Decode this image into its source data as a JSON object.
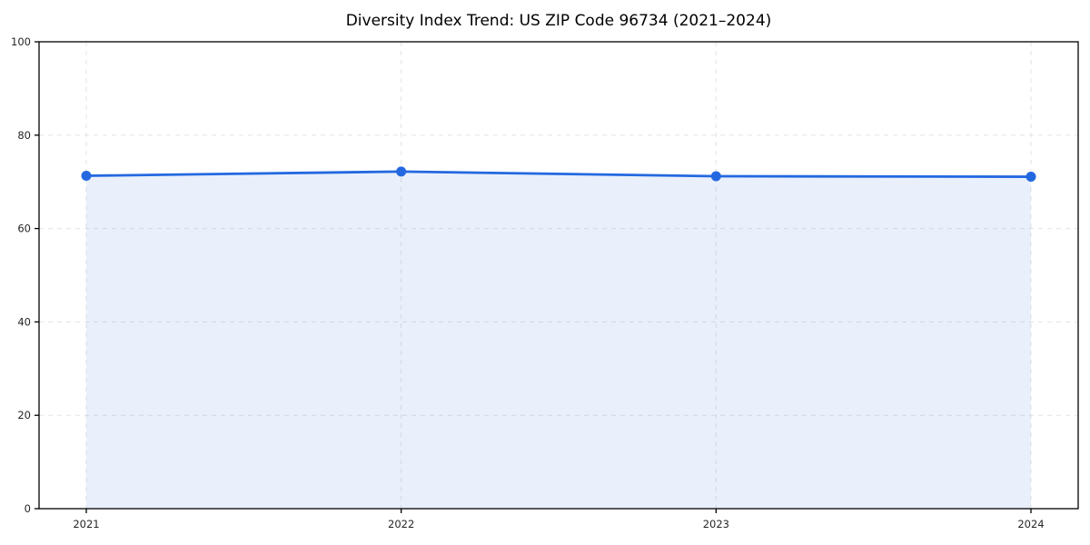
{
  "chart_data": {
    "type": "area",
    "title": "Diversity Index Trend: US ZIP Code 96734 (2021–2024)",
    "x": [
      2021,
      2022,
      2023,
      2024
    ],
    "values": [
      71.3,
      72.2,
      71.2,
      71.1
    ],
    "series_name": "Diversity Index",
    "xlabel": "",
    "ylabel": "",
    "xlim": [
      2020.85,
      2024.15
    ],
    "ylim": [
      0,
      100
    ],
    "xticks": [
      2021,
      2022,
      2023,
      2024
    ],
    "yticks": [
      0,
      20,
      40,
      60,
      80,
      100
    ],
    "grid": true,
    "grid_style": "dashed",
    "legend_position": "none",
    "line_color": "#2368e0",
    "fill_color": "rgba(35,104,224,0.10)",
    "grid_color": "#e3e3e3",
    "axis_color": "#000000",
    "tick_label_color": "#262626",
    "marker": "circle"
  }
}
